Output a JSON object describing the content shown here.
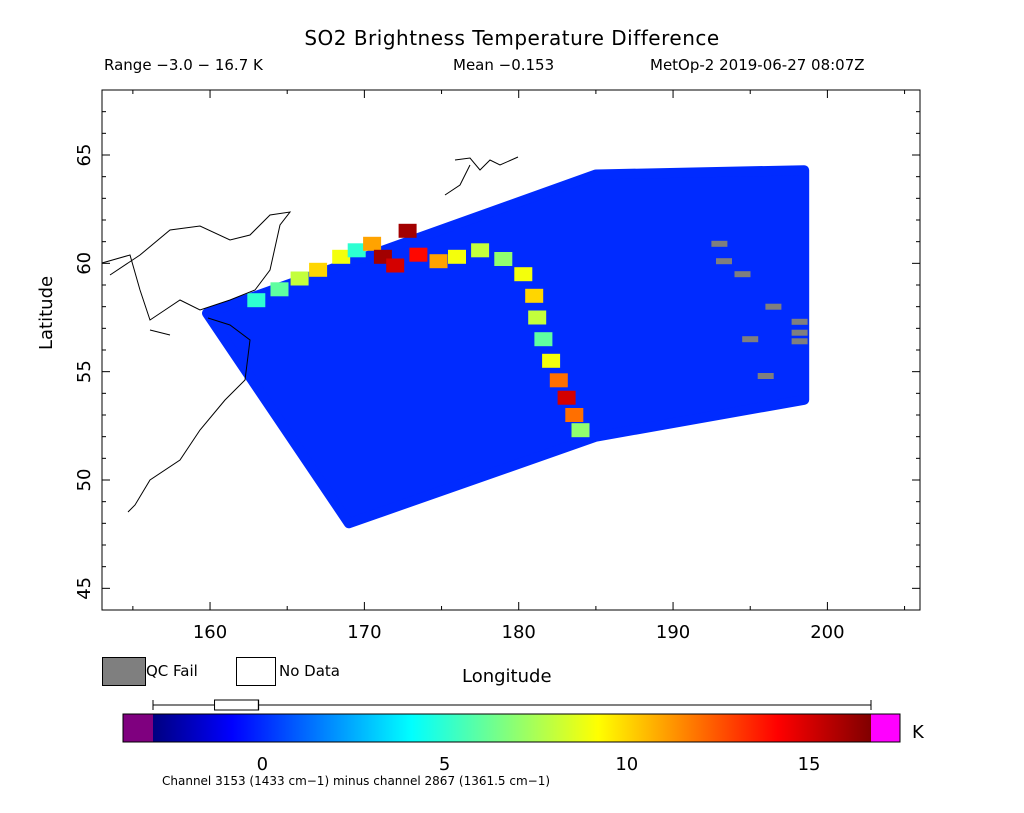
{
  "chart_data": {
    "type": "heatmap",
    "title": "SO2 Brightness Temperature Difference",
    "range_text": "Range −3.0 − 16.7 K",
    "mean_text": "Mean −0.153",
    "satellite_text": "MetOp-2 2019-06-27 08:07Z",
    "xlabel": "Longitude",
    "ylabel": "Latitude",
    "xlim": [
      153,
      206
    ],
    "ylim": [
      44,
      68
    ],
    "x_ticks": [
      160,
      170,
      180,
      190,
      200
    ],
    "y_ticks": [
      45,
      50,
      55,
      60,
      65
    ],
    "legend": [
      {
        "label": "QC Fail",
        "color": "#7f7f7f"
      },
      {
        "label": "No Data",
        "color": "#ffffff"
      }
    ],
    "colorbar": {
      "unit": "K",
      "range": [
        -3.0,
        16.7
      ],
      "ticks": [
        0,
        5,
        10,
        15
      ],
      "underflow_color": "#7f007f",
      "overflow_color": "#ff00ff",
      "box_min": -1.0,
      "box_max": 0.0,
      "box_q1": -0.9,
      "box_q3": 0.2
    },
    "caption": "Channel 3153 (1433 cm−1) minus channel 2867 (1361.5 cm−1)",
    "swath": {
      "corners_lon_lat": [
        [
          159.8,
          57.7
        ],
        [
          163,
          58.5
        ],
        [
          185,
          64.1
        ],
        [
          198.5,
          64.3
        ],
        [
          198.5,
          53.7
        ],
        [
          185,
          52.0
        ],
        [
          169,
          48.0
        ]
      ],
      "background_value": 0.0
    },
    "plume": [
      {
        "lon": 163.0,
        "lat": 58.3,
        "value": 5.0
      },
      {
        "lon": 164.5,
        "lat": 58.8,
        "value": 6.0
      },
      {
        "lon": 165.8,
        "lat": 59.3,
        "value": 8.0
      },
      {
        "lon": 167.0,
        "lat": 59.7,
        "value": 10.0
      },
      {
        "lon": 168.5,
        "lat": 60.3,
        "value": 9.0
      },
      {
        "lon": 169.5,
        "lat": 60.6,
        "value": 5.0
      },
      {
        "lon": 170.5,
        "lat": 60.9,
        "value": 11.0
      },
      {
        "lon": 171.2,
        "lat": 60.3,
        "value": 16.0
      },
      {
        "lon": 172.0,
        "lat": 59.9,
        "value": 15.0
      },
      {
        "lon": 172.8,
        "lat": 61.5,
        "value": 16.0
      },
      {
        "lon": 173.5,
        "lat": 60.4,
        "value": 14.0
      },
      {
        "lon": 174.8,
        "lat": 60.1,
        "value": 11.0
      },
      {
        "lon": 176.0,
        "lat": 60.3,
        "value": 9.0
      },
      {
        "lon": 177.5,
        "lat": 60.6,
        "value": 8.0
      },
      {
        "lon": 179.0,
        "lat": 60.2,
        "value": 7.0
      },
      {
        "lon": 180.3,
        "lat": 59.5,
        "value": 9.0
      },
      {
        "lon": 181.0,
        "lat": 58.5,
        "value": 10.0
      },
      {
        "lon": 181.2,
        "lat": 57.5,
        "value": 8.0
      },
      {
        "lon": 181.6,
        "lat": 56.5,
        "value": 6.0
      },
      {
        "lon": 182.1,
        "lat": 55.5,
        "value": 9.0
      },
      {
        "lon": 182.6,
        "lat": 54.6,
        "value": 12.0
      },
      {
        "lon": 183.1,
        "lat": 53.8,
        "value": 15.0
      },
      {
        "lon": 183.6,
        "lat": 53.0,
        "value": 12.0
      },
      {
        "lon": 184.0,
        "lat": 52.3,
        "value": 7.0
      }
    ],
    "qc_fail_cells": [
      {
        "lon": 193.0,
        "lat": 60.9
      },
      {
        "lon": 193.3,
        "lat": 60.1
      },
      {
        "lon": 194.5,
        "lat": 59.5
      },
      {
        "lon": 196.5,
        "lat": 58.0
      },
      {
        "lon": 198.2,
        "lat": 57.3
      },
      {
        "lon": 198.2,
        "lat": 56.8
      },
      {
        "lon": 198.2,
        "lat": 56.4
      },
      {
        "lon": 195.0,
        "lat": 56.5
      },
      {
        "lon": 196.0,
        "lat": 54.8
      }
    ]
  }
}
